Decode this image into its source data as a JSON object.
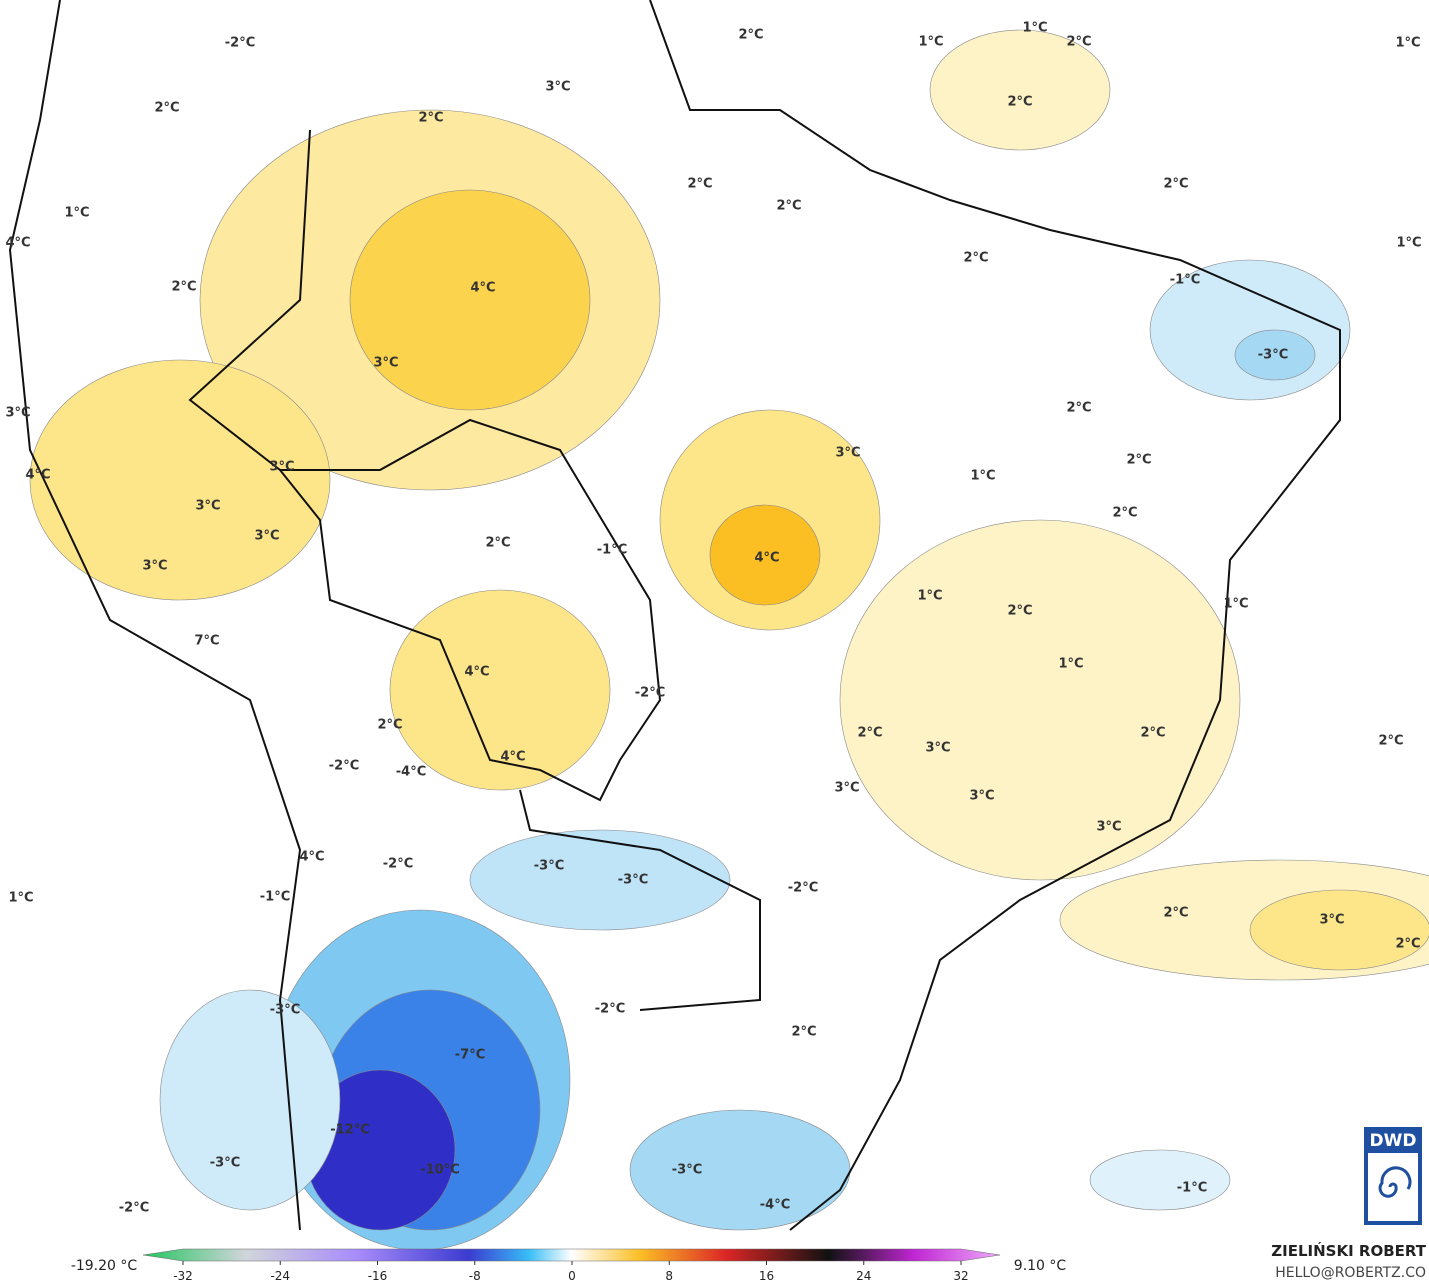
{
  "map": {
    "labels": [
      "-2°C",
      "2°C",
      "1°C",
      "4°C",
      "2°C",
      "3°C",
      "4°C",
      "3°C",
      "3°C",
      "3°C",
      "3°C",
      "7°C",
      "2°C",
      "3°C",
      "2°C",
      "4°C",
      "3°C",
      "2°C",
      "2°C",
      "1°C",
      "1°C",
      "2°C",
      "1°C",
      "2°C",
      "2°C",
      "2°C",
      "1°C",
      "-1°C",
      "-3°C",
      "2°C",
      "3°C",
      "2°C",
      "1°C",
      "2°C",
      "2°C",
      "-1°C",
      "4°C",
      "1°C",
      "2°C",
      "1°C",
      "1°C",
      "4°C",
      "-2°C",
      "2°C",
      "3°C",
      "2°C",
      "2°C",
      "2°C",
      "4°C",
      "-2°C",
      "-4°C",
      "3°C",
      "3°C",
      "3°C",
      "4°C",
      "-2°C",
      "-3°C",
      "-3°C",
      "-2°C",
      "1°C",
      "-1°C",
      "2°C",
      "3°C",
      "2°C",
      "-2°C",
      "-3°C",
      "2°C",
      "-7°C",
      "-12°C",
      "-10°C",
      "-3°C",
      "-3°C",
      "-1°C",
      "-4°C",
      "-2°C"
    ],
    "logo": "DWD"
  },
  "colorbar": {
    "min_label": "-19.20 °C",
    "max_label": "9.10 °C",
    "range": [
      -32,
      32
    ],
    "ticks": [
      -32,
      -24,
      -16,
      -8,
      0,
      8,
      16,
      24,
      32
    ]
  },
  "credit": {
    "author": "ZIELIŃSKI ROBERT",
    "email": "HELLO@ROBERTZ.CO"
  }
}
